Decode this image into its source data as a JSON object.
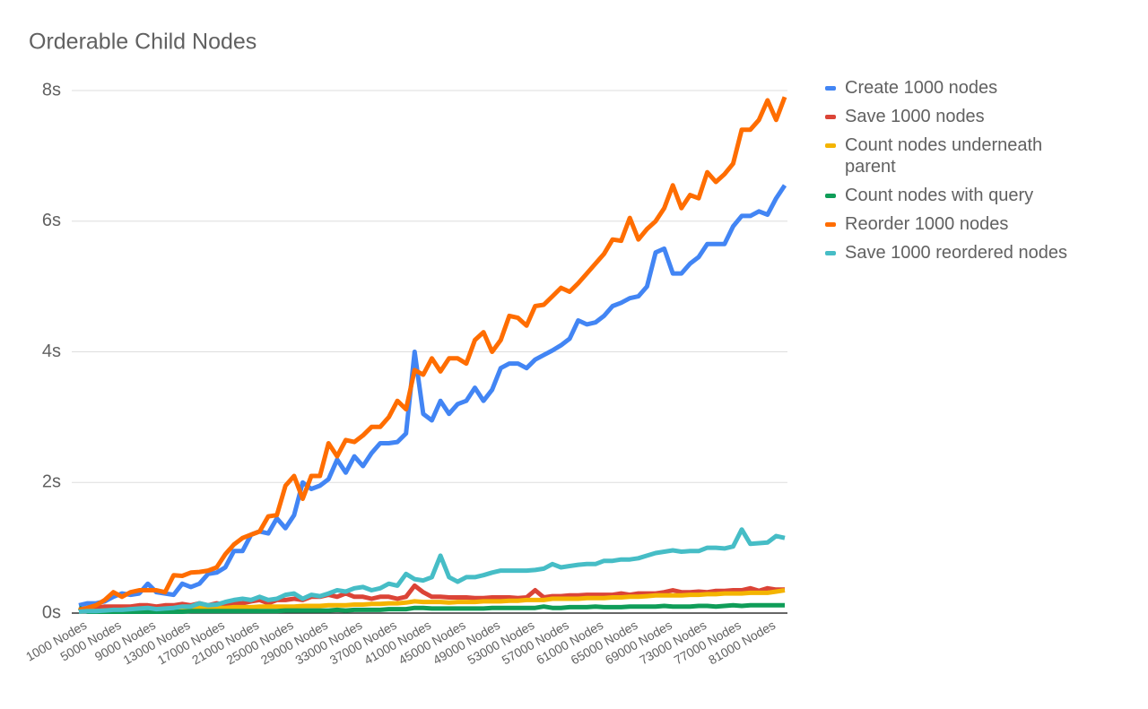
{
  "chart_data": {
    "type": "line",
    "title": "Orderable Child Nodes",
    "categories": [
      "1000 Nodes",
      null,
      null,
      null,
      "5000 Nodes",
      null,
      null,
      null,
      "9000 Nodes",
      null,
      null,
      null,
      "13000 Nodes",
      null,
      null,
      null,
      "17000 Nodes",
      null,
      null,
      null,
      "21000 Nodes",
      null,
      null,
      null,
      "25000 Nodes",
      null,
      null,
      null,
      "29000 Nodes",
      null,
      null,
      null,
      "33000 Nodes",
      null,
      null,
      null,
      "37000 Nodes",
      null,
      null,
      null,
      "41000 Nodes",
      null,
      null,
      null,
      "45000 Nodes",
      null,
      null,
      null,
      "49000 Nodes",
      null,
      null,
      null,
      "53000 Nodes",
      null,
      null,
      null,
      "57000 Nodes",
      null,
      null,
      null,
      "61000 Nodes",
      null,
      null,
      null,
      "65000 Nodes",
      null,
      null,
      null,
      "69000 Nodes",
      null,
      null,
      null,
      "73000 Nodes",
      null,
      null,
      null,
      "77000 Nodes",
      null,
      null,
      null,
      "81000 Nodes",
      null,
      null
    ],
    "series": [
      {
        "name": "Create 1000 nodes",
        "color": "#4285f4",
        "values": [
          0.12,
          0.15,
          0.15,
          0.18,
          0.25,
          0.3,
          0.28,
          0.3,
          0.45,
          0.32,
          0.3,
          0.28,
          0.45,
          0.4,
          0.45,
          0.6,
          0.62,
          0.7,
          0.95,
          0.95,
          1.2,
          1.25,
          1.22,
          1.45,
          1.3,
          1.5,
          2.0,
          1.9,
          1.95,
          2.05,
          2.35,
          2.15,
          2.4,
          2.25,
          2.45,
          2.6,
          2.6,
          2.62,
          2.75,
          4.0,
          3.05,
          2.95,
          3.25,
          3.05,
          3.2,
          3.25,
          3.45,
          3.25,
          3.42,
          3.75,
          3.82,
          3.82,
          3.75,
          3.88,
          3.95,
          4.02,
          4.1,
          4.2,
          4.48,
          4.42,
          4.45,
          4.55,
          4.7,
          4.75,
          4.82,
          4.85,
          5.0,
          5.52,
          5.58,
          5.2,
          5.2,
          5.35,
          5.45,
          5.65,
          5.65,
          5.65,
          5.92,
          6.08,
          6.08,
          6.15,
          6.1,
          6.35,
          6.55
        ]
      },
      {
        "name": "Save 1000 nodes",
        "color": "#db4437",
        "values": [
          0.05,
          0.07,
          0.08,
          0.1,
          0.1,
          0.1,
          0.1,
          0.12,
          0.12,
          0.1,
          0.12,
          0.12,
          0.14,
          0.12,
          0.15,
          0.12,
          0.15,
          0.13,
          0.15,
          0.15,
          0.18,
          0.2,
          0.15,
          0.2,
          0.2,
          0.22,
          0.2,
          0.25,
          0.25,
          0.28,
          0.25,
          0.3,
          0.25,
          0.25,
          0.22,
          0.25,
          0.25,
          0.22,
          0.25,
          0.42,
          0.32,
          0.25,
          0.25,
          0.24,
          0.24,
          0.24,
          0.23,
          0.23,
          0.24,
          0.24,
          0.24,
          0.23,
          0.24,
          0.35,
          0.24,
          0.26,
          0.26,
          0.27,
          0.27,
          0.28,
          0.28,
          0.28,
          0.28,
          0.3,
          0.28,
          0.3,
          0.3,
          0.3,
          0.32,
          0.35,
          0.32,
          0.32,
          0.33,
          0.32,
          0.34,
          0.34,
          0.35,
          0.35,
          0.38,
          0.34,
          0.38,
          0.36,
          0.36
        ]
      },
      {
        "name": "Count nodes underneath parent",
        "color": "#f4b400",
        "values": [
          0.02,
          0.03,
          0.03,
          0.04,
          0.04,
          0.05,
          0.05,
          0.05,
          0.06,
          0.06,
          0.06,
          0.07,
          0.07,
          0.07,
          0.08,
          0.08,
          0.08,
          0.08,
          0.09,
          0.09,
          0.09,
          0.1,
          0.1,
          0.1,
          0.1,
          0.1,
          0.11,
          0.11,
          0.11,
          0.12,
          0.12,
          0.12,
          0.13,
          0.13,
          0.14,
          0.14,
          0.15,
          0.15,
          0.16,
          0.18,
          0.17,
          0.17,
          0.17,
          0.16,
          0.17,
          0.17,
          0.17,
          0.18,
          0.18,
          0.18,
          0.19,
          0.19,
          0.2,
          0.2,
          0.2,
          0.22,
          0.22,
          0.22,
          0.22,
          0.23,
          0.23,
          0.23,
          0.24,
          0.24,
          0.25,
          0.25,
          0.26,
          0.27,
          0.27,
          0.27,
          0.27,
          0.28,
          0.28,
          0.29,
          0.29,
          0.3,
          0.3,
          0.3,
          0.31,
          0.31,
          0.31,
          0.33,
          0.35
        ]
      },
      {
        "name": "Count nodes with query",
        "color": "#0f9d58",
        "values": [
          0.08,
          0.02,
          0.02,
          0.02,
          0.02,
          0.02,
          0.02,
          0.02,
          0.02,
          0.02,
          0.02,
          0.02,
          0.02,
          0.03,
          0.03,
          0.03,
          0.03,
          0.03,
          0.03,
          0.03,
          0.03,
          0.03,
          0.03,
          0.03,
          0.04,
          0.04,
          0.04,
          0.04,
          0.04,
          0.04,
          0.05,
          0.04,
          0.05,
          0.05,
          0.05,
          0.05,
          0.06,
          0.06,
          0.06,
          0.08,
          0.08,
          0.07,
          0.07,
          0.07,
          0.07,
          0.07,
          0.07,
          0.07,
          0.08,
          0.08,
          0.08,
          0.08,
          0.08,
          0.08,
          0.1,
          0.08,
          0.08,
          0.09,
          0.09,
          0.09,
          0.1,
          0.09,
          0.09,
          0.09,
          0.1,
          0.1,
          0.1,
          0.1,
          0.11,
          0.1,
          0.1,
          0.1,
          0.11,
          0.11,
          0.1,
          0.11,
          0.12,
          0.11,
          0.12,
          0.12,
          0.12,
          0.12,
          0.12
        ]
      },
      {
        "name": "Reorder 1000 nodes",
        "color": "#ff6d00",
        "values": [
          0.05,
          0.08,
          0.12,
          0.2,
          0.32,
          0.25,
          0.32,
          0.35,
          0.35,
          0.35,
          0.32,
          0.58,
          0.57,
          0.62,
          0.63,
          0.65,
          0.7,
          0.9,
          1.05,
          1.15,
          1.2,
          1.25,
          1.48,
          1.5,
          1.95,
          2.1,
          1.75,
          2.1,
          2.1,
          2.6,
          2.4,
          2.65,
          2.62,
          2.72,
          2.85,
          2.85,
          3.0,
          3.25,
          3.12,
          3.72,
          3.65,
          3.9,
          3.7,
          3.9,
          3.9,
          3.82,
          4.18,
          4.3,
          4.0,
          4.18,
          4.55,
          4.52,
          4.4,
          4.7,
          4.72,
          4.85,
          4.98,
          4.92,
          5.05,
          5.2,
          5.35,
          5.5,
          5.72,
          5.7,
          6.05,
          5.72,
          5.88,
          6.0,
          6.2,
          6.55,
          6.2,
          6.4,
          6.35,
          6.75,
          6.6,
          6.72,
          6.88,
          7.4,
          7.4,
          7.55,
          7.85,
          7.55,
          7.9
        ]
      },
      {
        "name": "Save 1000 reordered nodes",
        "color": "#46bdc6",
        "values": [
          0.02,
          0.03,
          0.03,
          0.04,
          0.05,
          0.05,
          0.06,
          0.07,
          0.08,
          0.06,
          0.07,
          0.08,
          0.1,
          0.1,
          0.15,
          0.12,
          0.13,
          0.17,
          0.2,
          0.22,
          0.2,
          0.25,
          0.2,
          0.22,
          0.28,
          0.3,
          0.22,
          0.28,
          0.26,
          0.3,
          0.35,
          0.33,
          0.38,
          0.4,
          0.35,
          0.38,
          0.45,
          0.42,
          0.6,
          0.52,
          0.5,
          0.55,
          0.88,
          0.55,
          0.48,
          0.55,
          0.55,
          0.58,
          0.62,
          0.65,
          0.65,
          0.65,
          0.65,
          0.66,
          0.68,
          0.75,
          0.7,
          0.72,
          0.74,
          0.75,
          0.75,
          0.8,
          0.8,
          0.82,
          0.82,
          0.84,
          0.88,
          0.92,
          0.94,
          0.96,
          0.94,
          0.95,
          0.95,
          1.0,
          1.0,
          0.99,
          1.02,
          1.28,
          1.06,
          1.07,
          1.08,
          1.18,
          1.15
        ]
      }
    ],
    "ylim": [
      0,
      8
    ],
    "yticks": [
      {
        "value": 0,
        "label": "0s"
      },
      {
        "value": 2,
        "label": "2s"
      },
      {
        "value": 4,
        "label": "4s"
      },
      {
        "value": 6,
        "label": "6s"
      },
      {
        "value": 8,
        "label": "8s"
      }
    ],
    "grid": true,
    "legend": "right"
  }
}
